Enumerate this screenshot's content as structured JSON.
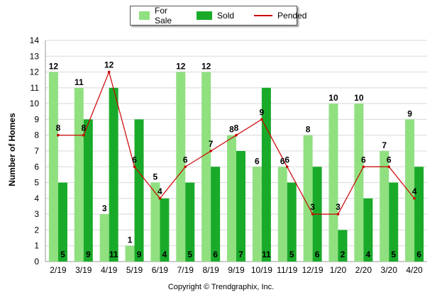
{
  "chart_data": {
    "type": "bar",
    "categories": [
      "2/19",
      "3/19",
      "4/19",
      "5/19",
      "6/19",
      "7/19",
      "8/19",
      "9/19",
      "10/19",
      "11/19",
      "12/19",
      "1/20",
      "2/20",
      "3/20",
      "4/20"
    ],
    "series": [
      {
        "name": "For Sale",
        "type": "bar",
        "color": "#90e080",
        "values": [
          12,
          11,
          3,
          1,
          5,
          12,
          12,
          8,
          6,
          6,
          8,
          10,
          10,
          7,
          9
        ]
      },
      {
        "name": "Sold",
        "type": "bar",
        "color": "#1aaa2a",
        "values": [
          5,
          9,
          11,
          9,
          4,
          5,
          6,
          7,
          11,
          5,
          6,
          2,
          4,
          5,
          6
        ]
      },
      {
        "name": "Pended",
        "type": "line",
        "color": "#cc0000",
        "values": [
          8,
          8,
          12,
          6,
          4,
          6,
          7,
          8,
          9,
          6,
          3,
          3,
          6,
          6,
          4
        ]
      }
    ],
    "ylabel": "Number of Homes",
    "xlabel": "",
    "ylim": [
      0,
      14
    ],
    "yticks": [
      0,
      1,
      2,
      3,
      4,
      5,
      6,
      7,
      8,
      9,
      10,
      11,
      12,
      13,
      14
    ],
    "grid": true,
    "legend": "top-center"
  },
  "legend": {
    "for_sale": "For Sale",
    "sold": "Sold",
    "pended": "Pended"
  },
  "footer": {
    "copyright": "Copyright © Trendgraphix, Inc."
  }
}
